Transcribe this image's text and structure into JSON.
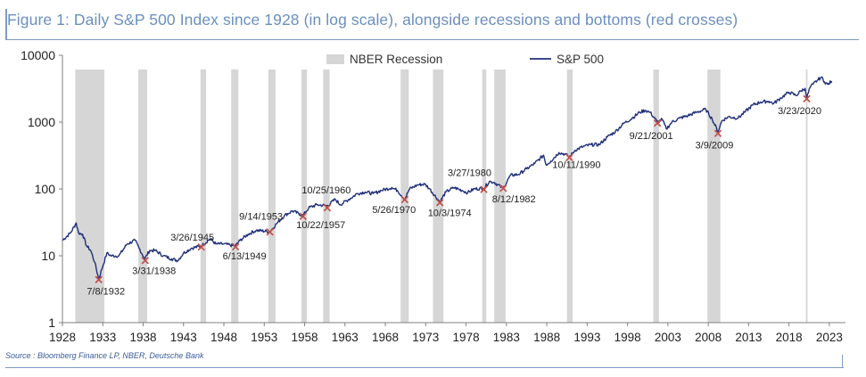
{
  "figure": {
    "title": "Figure 1: Daily S&P 500 Index since 1928 (in log scale), alongside recessions and bottoms (red crosses)",
    "source": "Source : Bloomberg Finance LP, NBER, Deutsche Bank"
  },
  "colors": {
    "title": "#6b8fbf",
    "line": "#1f2f7a",
    "recession": "#d6d6d6",
    "cross": "#c0504d",
    "axis": "#7f7f7f",
    "rule": "#7a9cc6"
  },
  "chart_data": {
    "type": "line",
    "title": "",
    "xlabel": "",
    "ylabel": "",
    "y_scale": "log",
    "ylim": [
      1,
      10000
    ],
    "xlim": [
      1928,
      2025
    ],
    "x_ticks": [
      "1928",
      "1933",
      "1938",
      "1943",
      "1948",
      "1953",
      "1958",
      "1963",
      "1968",
      "1973",
      "1978",
      "1983",
      "1988",
      "1993",
      "1998",
      "2003",
      "2008",
      "2013",
      "2018",
      "2023"
    ],
    "y_ticks": [
      "1",
      "10",
      "100",
      "1000",
      "10000"
    ],
    "legend": {
      "position": "top",
      "recession_label": "NBER Recession",
      "series_label": "S&P 500"
    },
    "recessions": [
      [
        1929.6,
        1933.2
      ],
      [
        1937.4,
        1938.5
      ],
      [
        1945.1,
        1945.8
      ],
      [
        1948.9,
        1949.8
      ],
      [
        1953.5,
        1954.4
      ],
      [
        1957.6,
        1958.3
      ],
      [
        1960.3,
        1961.1
      ],
      [
        1969.9,
        1970.9
      ],
      [
        1973.9,
        1975.2
      ],
      [
        1980.0,
        1980.5
      ],
      [
        1981.5,
        1982.9
      ],
      [
        1990.5,
        1991.2
      ],
      [
        2001.2,
        2001.9
      ],
      [
        2007.9,
        2009.5
      ],
      [
        2020.1,
        2020.3
      ]
    ],
    "series": [
      {
        "name": "S&P 500",
        "x": [
          1928.0,
          1929.0,
          1929.7,
          1930.0,
          1930.5,
          1931.0,
          1931.5,
          1932.0,
          1932.5,
          1933.0,
          1933.5,
          1934.0,
          1935.0,
          1936.0,
          1937.0,
          1937.5,
          1938.2,
          1938.8,
          1939.5,
          1940.5,
          1941.5,
          1942.3,
          1943.0,
          1944.0,
          1945.2,
          1946.3,
          1947.0,
          1948.0,
          1949.4,
          1950.0,
          1951.0,
          1952.0,
          1953.7,
          1954.5,
          1955.5,
          1956.5,
          1957.8,
          1958.5,
          1959.5,
          1960.8,
          1961.8,
          1962.4,
          1963.5,
          1964.5,
          1965.5,
          1966.5,
          1967.5,
          1968.8,
          1969.5,
          1970.4,
          1971.0,
          1972.0,
          1972.9,
          1973.5,
          1974.75,
          1975.5,
          1976.5,
          1977.5,
          1978.2,
          1979.0,
          1980.2,
          1980.9,
          1981.5,
          1982.6,
          1983.5,
          1984.5,
          1985.5,
          1986.5,
          1987.6,
          1987.9,
          1988.5,
          1989.5,
          1990.3,
          1990.8,
          1991.5,
          1992.5,
          1993.5,
          1994.5,
          1995.5,
          1996.5,
          1997.5,
          1998.6,
          1999.5,
          2000.2,
          2000.8,
          2001.7,
          2002.3,
          2002.8,
          2003.5,
          2004.5,
          2005.5,
          2006.5,
          2007.7,
          2008.5,
          2009.2,
          2009.7,
          2010.5,
          2011.7,
          2012.5,
          2013.5,
          2014.5,
          2015.5,
          2016.1,
          2017.0,
          2018.0,
          2018.9,
          2019.5,
          2020.0,
          2020.2,
          2020.6,
          2021.0,
          2021.5,
          2022.0,
          2022.4,
          2022.8,
          2023.3
        ],
        "values": [
          17,
          22,
          31,
          22,
          21,
          14,
          12,
          8,
          4.5,
          7,
          11,
          10,
          10,
          15,
          17,
          13,
          9,
          12,
          12,
          10,
          9,
          8.5,
          11,
          13,
          14,
          18,
          15,
          15,
          14,
          17,
          21,
          24,
          23,
          30,
          40,
          47,
          40,
          52,
          58,
          56,
          70,
          58,
          70,
          85,
          90,
          85,
          95,
          105,
          95,
          70,
          100,
          115,
          118,
          100,
          64,
          90,
          105,
          95,
          88,
          100,
          102,
          130,
          125,
          102,
          160,
          165,
          200,
          240,
          320,
          230,
          260,
          350,
          330,
          300,
          380,
          430,
          460,
          460,
          600,
          720,
          950,
          1150,
          1400,
          1500,
          1400,
          1000,
          1100,
          790,
          1000,
          1150,
          1250,
          1400,
          1550,
          1100,
          720,
          1050,
          1200,
          1150,
          1400,
          1800,
          2000,
          2050,
          1900,
          2300,
          2800,
          2500,
          2950,
          3200,
          2300,
          3300,
          3700,
          4200,
          4700,
          4000,
          3650,
          4100
        ]
      }
    ],
    "bottoms": [
      {
        "x": 1932.5,
        "y": 4.4,
        "label": "7/8/1932"
      },
      {
        "x": 1938.25,
        "y": 8.5,
        "label": "3/31/1938"
      },
      {
        "x": 1945.2,
        "y": 13.5,
        "label": "3/26/1945"
      },
      {
        "x": 1949.45,
        "y": 13.6,
        "label": "6/13/1949"
      },
      {
        "x": 1953.7,
        "y": 22.7,
        "label": "9/14/1953"
      },
      {
        "x": 1957.8,
        "y": 38.9,
        "label": "10/22/1957"
      },
      {
        "x": 1960.8,
        "y": 52.3,
        "label": "10/25/1960"
      },
      {
        "x": 1970.4,
        "y": 69.3,
        "label": "5/26/1970"
      },
      {
        "x": 1974.75,
        "y": 62.3,
        "label": "10/3/1974"
      },
      {
        "x": 1980.2,
        "y": 98.2,
        "label": "3/27/1980"
      },
      {
        "x": 1982.6,
        "y": 102.4,
        "label": "8/12/1982"
      },
      {
        "x": 1990.8,
        "y": 295.5,
        "label": "10/11/1990"
      },
      {
        "x": 2001.7,
        "y": 965.8,
        "label": "9/21/2001"
      },
      {
        "x": 2009.2,
        "y": 676.5,
        "label": "3/9/2009"
      },
      {
        "x": 2020.2,
        "y": 2237.4,
        "label": "3/23/2020"
      }
    ]
  }
}
